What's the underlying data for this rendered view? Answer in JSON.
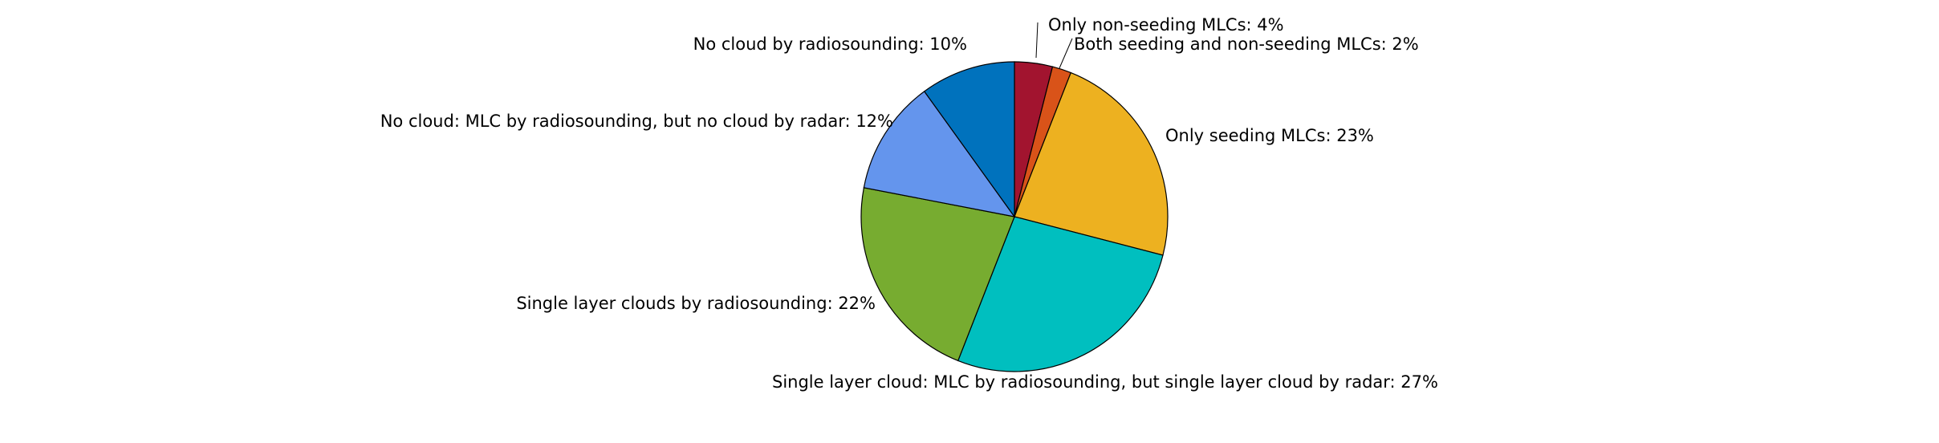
{
  "chart_data": {
    "type": "pie",
    "title": "",
    "start": "top",
    "direction": "clockwise",
    "slices": [
      {
        "label": "Only non-seeding MLCs: 4%",
        "value": 4,
        "color": "#A2142F"
      },
      {
        "label": "Both seeding and non-seeding MLCs: 2%",
        "value": 2,
        "color": "#D95319"
      },
      {
        "label": "Only seeding MLCs: 23%",
        "value": 23,
        "color": "#EDB120"
      },
      {
        "label": "Single layer cloud: MLC by radiosounding, but single layer cloud by radar: 27%",
        "value": 27,
        "color": "#00BFBF"
      },
      {
        "label": "Single layer clouds by radiosounding: 22%",
        "value": 22,
        "color": "#77AC30"
      },
      {
        "label": "No cloud: MLC by radiosounding, but no cloud by radar: 12%",
        "value": 12,
        "color": "#6495ED"
      },
      {
        "label": "No cloud by radiosounding: 10%",
        "value": 10,
        "color": "#0072BD"
      }
    ]
  }
}
